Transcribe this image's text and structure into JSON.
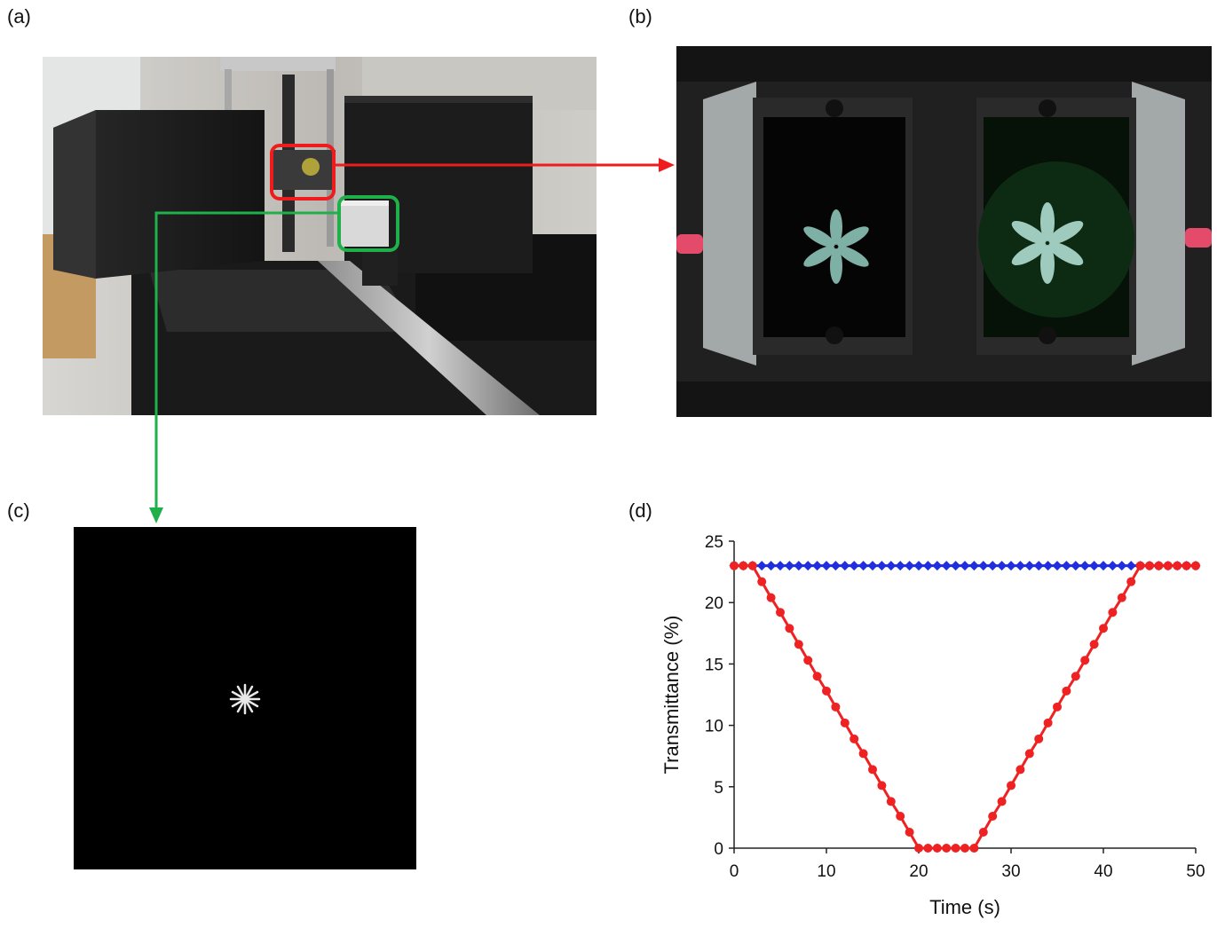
{
  "figure": {
    "panel_labels": [
      "(a)",
      "(b)",
      "(c)",
      "(d)"
    ]
  },
  "colors": {
    "highlight_red": "#ee1c1c",
    "highlight_green": "#1fb04a",
    "series_blue": "#1f2fe0",
    "series_red": "#ee2222",
    "stimulus_glyph": "#7fb0a6"
  },
  "chart_data": {
    "type": "line",
    "xlabel": "Time (s)",
    "ylabel": "Transmittance (%)",
    "xlim": [
      0,
      50
    ],
    "ylim": [
      0,
      25
    ],
    "xticks": [
      0,
      10,
      20,
      30,
      40,
      50
    ],
    "yticks": [
      0,
      5,
      10,
      15,
      20,
      25
    ],
    "grid": false,
    "legend": "none",
    "series": [
      {
        "color": "#1f2fe0",
        "marker": "diamond",
        "x": [
          0,
          1,
          2,
          3,
          4,
          5,
          6,
          7,
          8,
          9,
          10,
          11,
          12,
          13,
          14,
          15,
          16,
          17,
          18,
          19,
          20,
          21,
          22,
          23,
          24,
          25,
          26,
          27,
          28,
          29,
          30,
          31,
          32,
          33,
          34,
          35,
          36,
          37,
          38,
          39,
          40,
          41,
          42,
          43,
          44,
          45,
          46,
          47,
          48,
          49,
          50
        ],
        "y": [
          23,
          23,
          23,
          23,
          23,
          23,
          23,
          23,
          23,
          23,
          23,
          23,
          23,
          23,
          23,
          23,
          23,
          23,
          23,
          23,
          23,
          23,
          23,
          23,
          23,
          23,
          23,
          23,
          23,
          23,
          23,
          23,
          23,
          23,
          23,
          23,
          23,
          23,
          23,
          23,
          23,
          23,
          23,
          23,
          23,
          23,
          23,
          23,
          23,
          23,
          23
        ]
      },
      {
        "color": "#ee2222",
        "marker": "circle",
        "x": [
          0,
          1,
          2,
          3,
          4,
          5,
          6,
          7,
          8,
          9,
          10,
          11,
          12,
          13,
          14,
          15,
          16,
          17,
          18,
          19,
          20,
          21,
          22,
          23,
          24,
          25,
          26,
          27,
          28,
          29,
          30,
          31,
          32,
          33,
          34,
          35,
          36,
          37,
          38,
          39,
          40,
          41,
          42,
          43,
          44,
          45,
          46,
          47,
          48,
          49,
          50
        ],
        "y": [
          23,
          23,
          23,
          21.7,
          20.4,
          19.2,
          17.9,
          16.6,
          15.3,
          14.0,
          12.8,
          11.5,
          10.2,
          8.9,
          7.7,
          6.4,
          5.1,
          3.8,
          2.6,
          1.3,
          0,
          0,
          0,
          0,
          0,
          0,
          0,
          1.3,
          2.6,
          3.8,
          5.1,
          6.4,
          7.7,
          8.9,
          10.2,
          11.5,
          12.8,
          14.0,
          15.3,
          16.6,
          17.9,
          19.2,
          20.4,
          21.7,
          23,
          23,
          23,
          23,
          23,
          23,
          23
        ]
      }
    ]
  }
}
